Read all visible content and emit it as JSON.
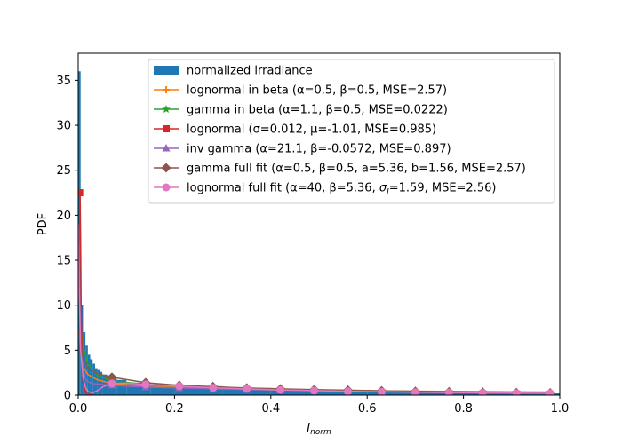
{
  "chart_data": {
    "type": "line",
    "xlabel": "I",
    "xlabel_sub": "norm",
    "ylabel": "PDF",
    "xlim": [
      0.0,
      1.0
    ],
    "ylim": [
      0,
      38
    ],
    "xticks": [
      "0.0",
      "0.2",
      "0.4",
      "0.6",
      "0.8",
      "1.0"
    ],
    "yticks": [
      "0",
      "5",
      "10",
      "15",
      "20",
      "25",
      "30",
      "35"
    ],
    "grid": false,
    "legend_position": "top-right",
    "histogram": {
      "name": "normalized irradiance",
      "color": "#1f77b4",
      "bin_width": 0.005,
      "bin_starts": [
        0.0,
        0.005,
        0.01,
        0.015,
        0.02,
        0.025,
        0.03,
        0.035,
        0.04,
        0.045,
        0.05,
        0.06,
        0.08,
        0.1,
        0.15,
        0.2,
        0.3,
        0.4,
        0.5,
        0.6,
        0.7,
        0.8,
        0.9
      ],
      "bin_widths": [
        0.005,
        0.005,
        0.005,
        0.005,
        0.005,
        0.005,
        0.005,
        0.005,
        0.005,
        0.005,
        0.01,
        0.02,
        0.02,
        0.05,
        0.05,
        0.1,
        0.1,
        0.1,
        0.1,
        0.1,
        0.1,
        0.1,
        0.1
      ],
      "values": [
        36.0,
        10.0,
        7.0,
        5.5,
        4.5,
        4.0,
        3.5,
        3.0,
        2.8,
        2.6,
        2.3,
        2.0,
        1.7,
        1.4,
        1.2,
        1.0,
        0.8,
        0.6,
        0.5,
        0.4,
        0.3,
        0.25,
        0.2
      ]
    },
    "series": [
      {
        "name": "lognormal in beta (α=0.5, β=0.5, MSE=2.57)",
        "color": "#ff7f0e",
        "marker": "plus",
        "x": [
          0.002,
          0.01,
          0.02,
          0.04,
          0.07,
          0.14,
          0.21,
          0.28,
          0.35,
          0.42,
          0.49,
          0.56,
          0.63,
          0.7,
          0.77,
          0.84,
          0.91,
          0.98
        ],
        "y": [
          7.0,
          3.2,
          2.3,
          1.7,
          1.3,
          1.0,
          0.85,
          0.75,
          0.68,
          0.62,
          0.57,
          0.52,
          0.48,
          0.45,
          0.42,
          0.4,
          0.37,
          0.35
        ],
        "marker_x": [
          0.07,
          0.14,
          0.21,
          0.28,
          0.35,
          0.42,
          0.49,
          0.56,
          0.63,
          0.7,
          0.77,
          0.84,
          0.91,
          0.98
        ]
      },
      {
        "name": "gamma in beta (α=1.1, β=0.5, MSE=0.0222)",
        "color": "#2ca02c",
        "marker": "star",
        "x": [
          0.001,
          0.005,
          0.01,
          0.02,
          0.04,
          0.07,
          0.14,
          0.21,
          0.28,
          0.35,
          0.42,
          0.49,
          0.56,
          0.63,
          0.7,
          0.77,
          0.84,
          0.91,
          0.98
        ],
        "y": [
          15.0,
          8.0,
          5.5,
          3.5,
          2.2,
          1.6,
          1.2,
          1.0,
          0.85,
          0.75,
          0.65,
          0.58,
          0.52,
          0.47,
          0.42,
          0.38,
          0.35,
          0.32,
          0.3
        ],
        "marker_x": [
          0.07,
          0.14,
          0.21,
          0.28,
          0.35,
          0.42,
          0.49,
          0.56,
          0.63,
          0.7,
          0.77,
          0.84,
          0.91,
          0.98
        ]
      },
      {
        "name": "lognormal (σ=0.012, μ=-1.01, MSE=0.985)",
        "color": "#d62728",
        "marker": "square",
        "x": [
          0.003,
          0.004,
          0.005,
          0.006,
          0.008,
          0.01,
          0.015,
          0.02,
          0.03
        ],
        "y": [
          22.5,
          22.0,
          17.0,
          10.0,
          4.0,
          1.5,
          0.3,
          0.05,
          0.0
        ],
        "marker_x": [
          0.003
        ]
      },
      {
        "name": "inv gamma (α=21.1, β=-0.0572, MSE=0.897)",
        "color": "#9467bd",
        "marker": "triangle",
        "x": [
          0.001,
          0.005,
          0.01,
          0.015,
          0.02,
          0.03,
          0.05,
          0.07,
          0.1,
          0.14,
          0.21,
          0.28,
          0.35,
          0.42,
          0.49,
          0.56,
          0.63,
          0.7,
          0.77,
          0.84,
          0.91,
          0.98
        ],
        "y": [
          17.0,
          6.0,
          3.0,
          1.8,
          1.5,
          1.3,
          1.2,
          1.1,
          1.0,
          0.9,
          0.8,
          0.7,
          0.62,
          0.55,
          0.5,
          0.45,
          0.4,
          0.37,
          0.34,
          0.31,
          0.29,
          0.27
        ],
        "marker_x": [
          0.07,
          0.14,
          0.21,
          0.28,
          0.35,
          0.42,
          0.49,
          0.56,
          0.63,
          0.7,
          0.77,
          0.84,
          0.91,
          0.98
        ]
      },
      {
        "name": "gamma full fit (α=0.5, β=0.5, a=5.36, b=1.56, MSE=2.57)",
        "color": "#8c564b",
        "marker": "diamond",
        "x": [
          0.002,
          0.01,
          0.02,
          0.04,
          0.07,
          0.14,
          0.21,
          0.28,
          0.35,
          0.42,
          0.49,
          0.56,
          0.63,
          0.7,
          0.77,
          0.84,
          0.91,
          0.98
        ],
        "y": [
          7.0,
          4.0,
          3.0,
          2.4,
          2.0,
          1.4,
          1.1,
          0.95,
          0.8,
          0.7,
          0.62,
          0.55,
          0.48,
          0.42,
          0.37,
          0.32,
          0.27,
          0.23
        ],
        "marker_x": [
          0.07,
          0.14,
          0.21,
          0.28,
          0.35,
          0.42,
          0.49,
          0.56,
          0.63,
          0.7,
          0.77,
          0.84,
          0.91,
          0.98
        ]
      },
      {
        "name": "lognormal full fit (α=40, β=5.36, σ_I=1.59, MSE=2.56)",
        "name_main": "lognormal full fit (α=40, β=5.36, ",
        "name_sigma": "σ",
        "name_sigma_sub": "I",
        "name_tail": "=1.59, MSE=2.56)",
        "color": "#e377c2",
        "marker": "circle",
        "x": [
          0.0005,
          0.002,
          0.005,
          0.01,
          0.015,
          0.02,
          0.03,
          0.04,
          0.05,
          0.07,
          0.1,
          0.14,
          0.21,
          0.28,
          0.35,
          0.42,
          0.49,
          0.56,
          0.63,
          0.7,
          0.77,
          0.84,
          0.91,
          0.98
        ],
        "y": [
          19.0,
          12.0,
          5.0,
          2.0,
          0.9,
          0.4,
          0.25,
          0.5,
          0.9,
          1.3,
          1.35,
          1.2,
          1.0,
          0.83,
          0.7,
          0.58,
          0.5,
          0.43,
          0.37,
          0.32,
          0.28,
          0.25,
          0.22,
          0.2
        ],
        "marker_x": [
          0.07,
          0.14,
          0.21,
          0.28,
          0.35,
          0.42,
          0.49,
          0.56,
          0.63,
          0.7,
          0.77,
          0.84,
          0.91,
          0.98
        ]
      }
    ]
  }
}
